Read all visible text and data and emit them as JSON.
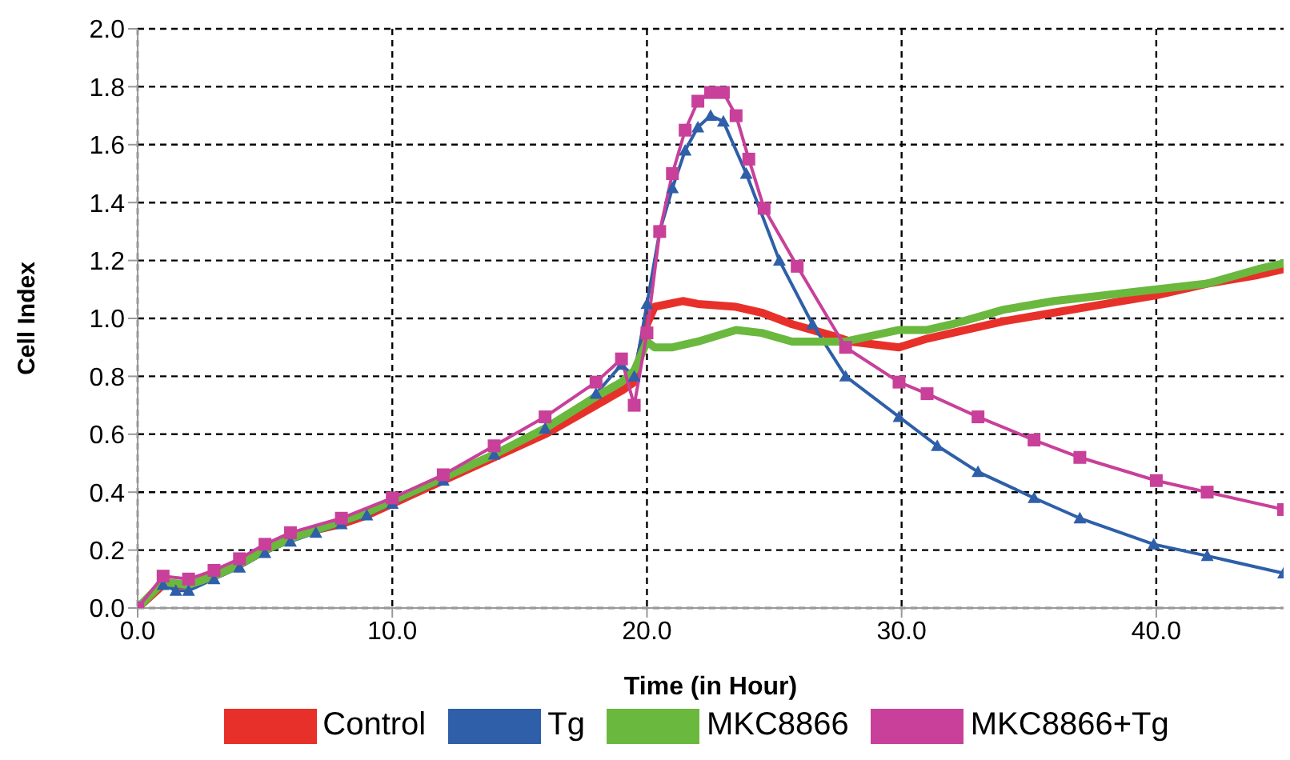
{
  "chart_data": {
    "type": "line",
    "xlabel": "Time (in Hour)",
    "ylabel": "Cell Index",
    "xlim": [
      0,
      45
    ],
    "xticks": [
      {
        "value": 0,
        "label": "0.0"
      },
      {
        "value": 10,
        "label": "10.0"
      },
      {
        "value": 20,
        "label": "20.0"
      },
      {
        "value": 30,
        "label": "30.0"
      },
      {
        "value": 40,
        "label": "40.0"
      }
    ],
    "ylim": [
      0,
      2
    ],
    "yticks": [
      {
        "value": 0,
        "label": "0.0"
      },
      {
        "value": 0.2,
        "label": "0.2"
      },
      {
        "value": 0.4,
        "label": "0.4"
      },
      {
        "value": 0.6,
        "label": "0.6"
      },
      {
        "value": 0.8,
        "label": "0.8"
      },
      {
        "value": 1,
        "label": "1.0"
      },
      {
        "value": 1.2,
        "label": "1.2"
      },
      {
        "value": 1.4,
        "label": "1.4"
      },
      {
        "value": 1.6,
        "label": "1.6"
      },
      {
        "value": 1.8,
        "label": "1.8"
      },
      {
        "value": 2,
        "label": "2.0"
      }
    ],
    "grid": true,
    "legend": "bottom",
    "series": [
      {
        "name": "Control",
        "color": "#e8302a",
        "marker": "none",
        "x": [
          0,
          1,
          2,
          3,
          4,
          5,
          6,
          7,
          8,
          9,
          10,
          12,
          14,
          16,
          18,
          19,
          19.5,
          20,
          20.3,
          21.4,
          22,
          23.5,
          24.5,
          25.7,
          27.3,
          28,
          29.9,
          31,
          32,
          34,
          36,
          38,
          40,
          42,
          44,
          45
        ],
        "values": [
          0,
          0.08,
          0.08,
          0.11,
          0.15,
          0.2,
          0.24,
          0.27,
          0.29,
          0.32,
          0.36,
          0.44,
          0.52,
          0.6,
          0.7,
          0.75,
          0.78,
          0.98,
          1.04,
          1.06,
          1.05,
          1.04,
          1.02,
          0.98,
          0.94,
          0.92,
          0.9,
          0.93,
          0.95,
          0.99,
          1.02,
          1.05,
          1.08,
          1.12,
          1.15,
          1.17
        ]
      },
      {
        "name": "Tg",
        "color": "#2e5fa8",
        "marker": "triangle",
        "x": [
          0,
          1,
          1.5,
          2,
          3,
          4,
          5,
          6,
          7,
          8,
          9,
          10,
          12,
          14,
          16,
          18,
          19,
          19.5,
          20,
          20.5,
          21,
          21.5,
          22,
          22.5,
          23,
          23.9,
          25.2,
          26.5,
          27.8,
          29.9,
          31.4,
          33,
          35.2,
          37,
          39.9,
          42,
          45
        ],
        "values": [
          0,
          0.08,
          0.06,
          0.06,
          0.1,
          0.14,
          0.19,
          0.23,
          0.26,
          0.29,
          0.32,
          0.36,
          0.44,
          0.53,
          0.62,
          0.74,
          0.84,
          0.8,
          1.05,
          1.3,
          1.45,
          1.58,
          1.66,
          1.7,
          1.68,
          1.5,
          1.2,
          0.98,
          0.8,
          0.66,
          0.56,
          0.47,
          0.38,
          0.31,
          0.22,
          0.18,
          0.12
        ]
      },
      {
        "name": "MKC8866",
        "color": "#6ab83e",
        "marker": "none",
        "x": [
          0,
          1,
          2,
          3,
          4,
          5,
          6,
          7,
          8,
          9,
          10,
          12,
          14,
          16,
          18,
          19,
          19.5,
          20,
          20.3,
          21,
          22,
          23.5,
          24.5,
          25.7,
          27.8,
          29.9,
          31,
          32,
          34,
          36,
          38,
          40,
          42,
          44,
          45
        ],
        "values": [
          0,
          0.09,
          0.08,
          0.11,
          0.15,
          0.2,
          0.24,
          0.27,
          0.3,
          0.33,
          0.37,
          0.45,
          0.53,
          0.62,
          0.73,
          0.78,
          0.82,
          0.92,
          0.9,
          0.9,
          0.92,
          0.96,
          0.95,
          0.92,
          0.92,
          0.96,
          0.96,
          0.98,
          1.03,
          1.06,
          1.08,
          1.1,
          1.12,
          1.17,
          1.19
        ]
      },
      {
        "name": "MKC8866+Tg",
        "color": "#c8409a",
        "marker": "square",
        "x": [
          0,
          1,
          2,
          3,
          4,
          5,
          6,
          8,
          10,
          12,
          14,
          16,
          18,
          19,
          19.5,
          20,
          20.5,
          21,
          21.5,
          22,
          22.5,
          23,
          23.5,
          24,
          24.6,
          25.9,
          27.8,
          29.9,
          31,
          33,
          35.2,
          37,
          40,
          42,
          45
        ],
        "values": [
          0,
          0.11,
          0.1,
          0.13,
          0.17,
          0.22,
          0.26,
          0.31,
          0.38,
          0.46,
          0.56,
          0.66,
          0.78,
          0.86,
          0.7,
          0.95,
          1.3,
          1.5,
          1.65,
          1.75,
          1.78,
          1.78,
          1.7,
          1.55,
          1.38,
          1.18,
          0.9,
          0.78,
          0.74,
          0.66,
          0.58,
          0.52,
          0.44,
          0.4,
          0.34
        ]
      }
    ]
  }
}
